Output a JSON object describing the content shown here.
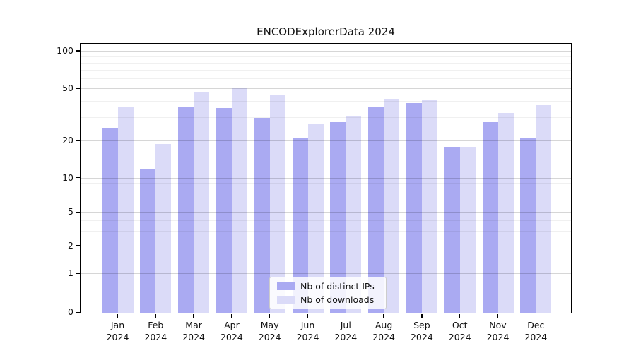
{
  "figure": {
    "title": "ENCODExplorerData 2024"
  },
  "x_axis": {
    "months": [
      "Jan",
      "Feb",
      "Mar",
      "Apr",
      "May",
      "Jun",
      "Jul",
      "Aug",
      "Sep",
      "Oct",
      "Nov",
      "Dec"
    ],
    "year": "2024"
  },
  "y_axis": {
    "major_ticks": [
      100,
      50,
      20,
      10,
      5,
      2,
      1,
      0
    ],
    "minor_ticks": [
      90,
      80,
      70,
      60,
      40,
      30,
      9,
      8,
      7,
      6,
      4,
      3
    ]
  },
  "legend": {
    "items": [
      "Nb of distinct IPs",
      "Nb of downloads"
    ]
  },
  "colors": {
    "distinct_ips": "#aaaaf2",
    "downloads": "#dbdbf8",
    "axis": "#000000"
  },
  "chart_data": {
    "type": "bar",
    "title": "ENCODExplorerData 2024",
    "categories": [
      "Jan 2024",
      "Feb 2024",
      "Mar 2024",
      "Apr 2024",
      "May 2024",
      "Jun 2024",
      "Jul 2024",
      "Aug 2024",
      "Sep 2024",
      "Oct 2024",
      "Nov 2024",
      "Dec 2024"
    ],
    "series": [
      {
        "name": "Nb of distinct IPs",
        "color": "#aaaaf2",
        "values": [
          25,
          12,
          37,
          36,
          30,
          21,
          28,
          37,
          39,
          18,
          28,
          21
        ]
      },
      {
        "name": "Nb of downloads",
        "color": "#dbdbf8",
        "values": [
          37,
          19,
          47,
          51,
          45,
          27,
          31,
          42,
          41,
          18,
          33,
          38
        ]
      }
    ],
    "xlabel": "",
    "ylabel": "",
    "ylim": [
      0,
      100
    ],
    "yscale": "log-like (ticks 0,1,2,5,10,20,50,100)",
    "y_major_ticks": [
      0,
      1,
      2,
      5,
      10,
      20,
      50,
      100
    ],
    "y_minor_ticks": [
      3,
      4,
      6,
      7,
      8,
      9,
      30,
      40,
      60,
      70,
      80,
      90
    ],
    "grid": "horizontal major + minor gridlines",
    "legend_position": "inside bottom-center"
  }
}
